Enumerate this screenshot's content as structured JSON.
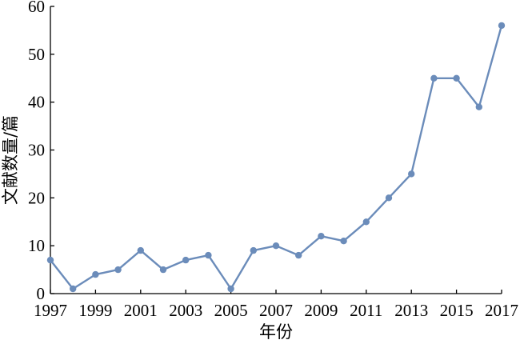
{
  "chart_data": {
    "type": "line",
    "xlabel": "年份",
    "ylabel": "文献数量/篇",
    "x": [
      1997,
      1998,
      1999,
      2000,
      2001,
      2002,
      2003,
      2004,
      2005,
      2006,
      2007,
      2008,
      2009,
      2010,
      2011,
      2012,
      2013,
      2014,
      2015,
      2016,
      2017
    ],
    "series": [
      {
        "values": [
          7,
          1,
          4,
          5,
          9,
          5,
          7,
          8,
          1,
          9,
          10,
          8,
          12,
          11,
          15,
          20,
          25,
          45,
          45,
          39,
          56
        ]
      }
    ],
    "xlim": [
      1997,
      2017
    ],
    "ylim": [
      0,
      60
    ],
    "x_ticks": [
      1997,
      1999,
      2001,
      2003,
      2005,
      2007,
      2009,
      2011,
      2013,
      2015,
      2017
    ],
    "y_ticks": [
      0,
      10,
      20,
      30,
      40,
      50,
      60
    ],
    "x_tick_labels": [
      "1997",
      "1999",
      "2001",
      "2003",
      "2005",
      "2007",
      "2009",
      "2011",
      "2013",
      "2015",
      "2017"
    ],
    "y_tick_labels": [
      "0",
      "10",
      "20",
      "30",
      "40",
      "50",
      "60"
    ],
    "grid": false,
    "line_color": "#6b8cba",
    "marker_color": "#6b8cba"
  }
}
